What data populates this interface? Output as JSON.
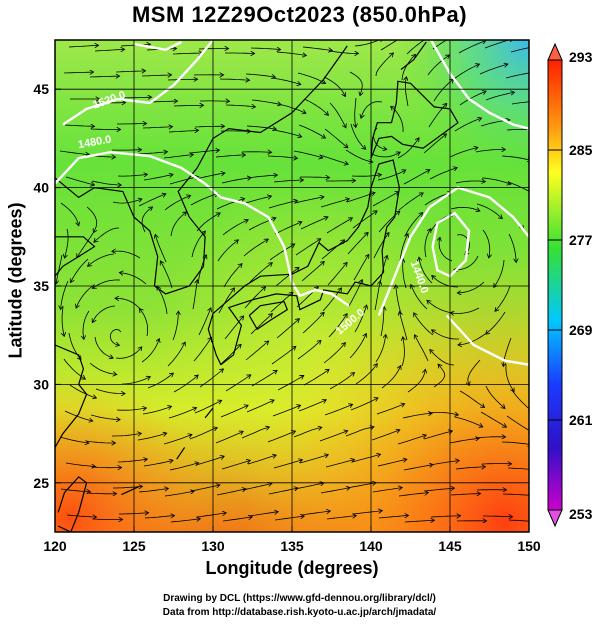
{
  "title": "MSM 12Z29Oct2023 (850.0hPa)",
  "xlabel": "Longitude (degrees)",
  "ylabel": "Latitude  (degrees)",
  "credits": [
    "Drawing by DCL (https://www.gfd-dennou.org/library/dcl/)",
    "Data from http://database.rish.kyoto-u.ac.jp/arch/jmadata/"
  ],
  "chart_data": {
    "type": "heatmap",
    "variable": "temperature with streamlines",
    "xlim": [
      120,
      150
    ],
    "ylim": [
      22.5,
      47.5
    ],
    "xticks": [
      120,
      125,
      130,
      135,
      140,
      145,
      150
    ],
    "yticks": [
      25,
      30,
      35,
      40,
      45
    ],
    "colorbar": {
      "min": 253,
      "max": 293,
      "ticks": [
        293,
        285,
        277,
        269,
        261,
        253
      ]
    },
    "contours": [
      "1520.0",
      "1480.0",
      "1440.0",
      "1500.0"
    ],
    "colors": {
      "cold": "#cc00cc",
      "cool": "#1a3cff",
      "mild": "#00c8ff",
      "neutral": "#35e035",
      "warm": "#ffff20",
      "hot": "#ff2000"
    }
  }
}
